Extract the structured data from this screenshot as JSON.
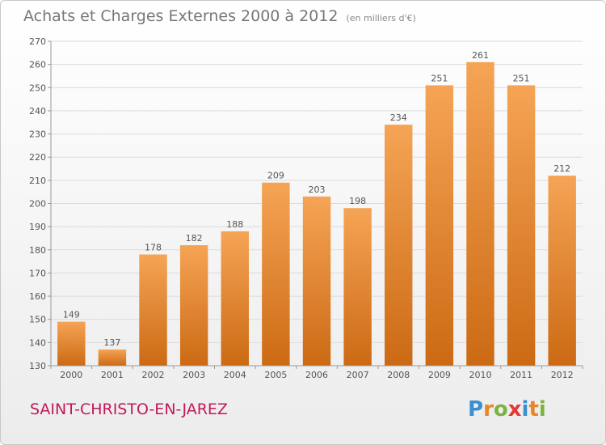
{
  "chart_data": {
    "type": "bar",
    "title": "Achats et Charges Externes 2000 à 2012",
    "subtitle": "(en milliers d'€)",
    "categories": [
      "2000",
      "2001",
      "2002",
      "2003",
      "2004",
      "2005",
      "2006",
      "2007",
      "2008",
      "2009",
      "2010",
      "2011",
      "2012"
    ],
    "values": [
      149,
      137,
      178,
      182,
      188,
      209,
      203,
      198,
      234,
      251,
      261,
      251,
      212
    ],
    "ylim": [
      130,
      270
    ],
    "yticks": [
      130,
      140,
      150,
      160,
      170,
      180,
      190,
      200,
      210,
      220,
      230,
      240,
      250,
      260,
      270
    ],
    "grid": true,
    "bar_color_top": "#f5a455",
    "bar_color_bottom": "#cc6a14"
  },
  "footer": {
    "place_name": "SAINT-CHRISTO-EN-JAREZ",
    "place_color": "#c2185b",
    "logo_letters": [
      "P",
      "r",
      "o",
      "x",
      "i",
      "t",
      "i"
    ],
    "logo_colors": [
      "#3a8fd0",
      "#e8862a",
      "#7cb342",
      "#e53935",
      "#3a8fd0",
      "#e8862a",
      "#7cb342"
    ]
  }
}
